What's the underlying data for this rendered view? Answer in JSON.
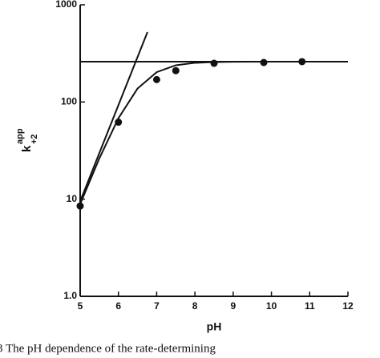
{
  "chart_data": {
    "type": "scatter",
    "xlabel": "pH",
    "ylabel": "k",
    "ylabel_sub": "+2",
    "ylabel_sup": "app",
    "caption": "3 The pH dependence of the rate-determining",
    "ylog": true,
    "xlim": [
      5,
      12
    ],
    "xticks": [
      5,
      6,
      7,
      8,
      9,
      10,
      11,
      12
    ],
    "ylim": [
      1,
      1000
    ],
    "yticks": [
      {
        "value": 1,
        "label": "1.0"
      },
      10,
      100,
      1000
    ],
    "series": [
      {
        "style": "marker",
        "color": "#111",
        "x": [
          5,
          6,
          7,
          7.5,
          8.5,
          9.8,
          10.8
        ],
        "values": [
          8.5,
          62,
          170,
          210,
          250,
          255,
          260
        ]
      },
      {
        "style": "line",
        "color": "#111",
        "x": [
          5,
          5.5,
          6,
          6.5,
          7,
          7.5,
          8,
          8.5,
          9,
          10,
          11,
          12
        ],
        "values": [
          8.9,
          26.2,
          68.1,
          137.5,
          202.8,
          238.7,
          252.9,
          257.7,
          259.3,
          259.9,
          260,
          260
        ]
      },
      {
        "style": "line",
        "color": "#111",
        "x": [
          5,
          12
        ],
        "values": [
          260,
          260
        ]
      },
      {
        "style": "line",
        "color": "#111",
        "x": [
          5,
          6.76
        ],
        "values": [
          9.5,
          525
        ]
      }
    ]
  }
}
